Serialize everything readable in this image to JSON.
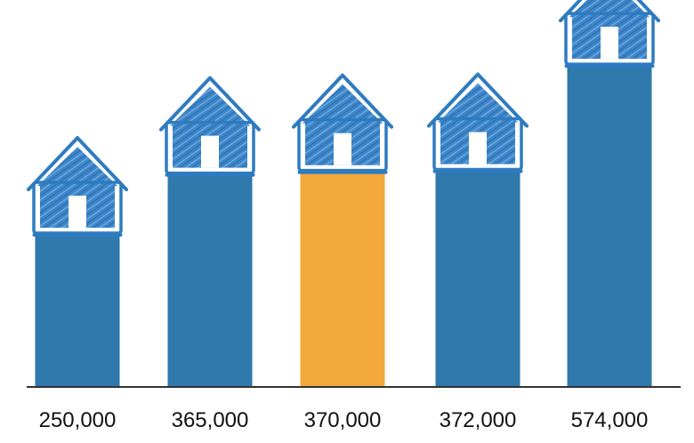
{
  "chart_data": {
    "type": "bar",
    "categories": [
      "250,000",
      "365,000",
      "370,000",
      "372,000",
      "574,000"
    ],
    "values": [
      250000,
      365000,
      370000,
      372000,
      574000
    ],
    "highlight_index": 2,
    "colors": {
      "bar": "#2f79ad",
      "highlight": "#f2a93b",
      "house_fill": "#3f86c8",
      "house_stroke": "#2f7bc0",
      "axis": "#333333"
    },
    "title": "",
    "xlabel": "",
    "ylabel": "",
    "grid": false,
    "legend": "none"
  }
}
